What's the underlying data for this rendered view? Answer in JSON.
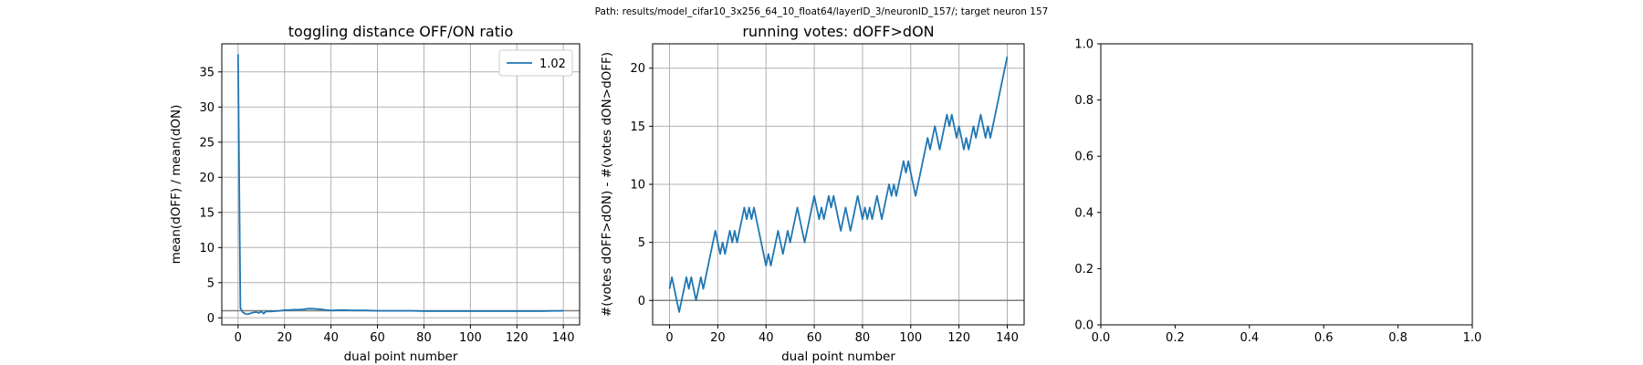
{
  "figure": {
    "suptitle": "Path: results/model_cifar10_3x256_64_10_float64/layerID_3/neuronID_157/; target neuron 157",
    "colors": {
      "line": "#1f77b4",
      "grid": "#b0b0b0",
      "hline": "#808080",
      "axes": "#000000"
    }
  },
  "chart_data": [
    {
      "type": "line",
      "title": "toggling distance OFF/ON ratio",
      "xlabel": "dual point number",
      "ylabel": "mean(dOFF) / mean(dON)",
      "xlim": [
        -7,
        147
      ],
      "ylim": [
        -1.0,
        39.0
      ],
      "xticks": [
        0,
        20,
        40,
        60,
        80,
        100,
        120,
        140
      ],
      "yticks": [
        0,
        5,
        10,
        15,
        20,
        25,
        30,
        35
      ],
      "grid": true,
      "legend": {
        "position": "top-right",
        "entries": [
          "1.02"
        ]
      },
      "hline": 1.02,
      "series": [
        {
          "name": "1.02",
          "x": [
            0,
            1,
            2,
            3,
            4,
            5,
            6,
            7,
            8,
            9,
            10,
            11,
            12,
            14,
            16,
            18,
            20,
            22,
            24,
            26,
            28,
            30,
            32,
            34,
            36,
            38,
            40,
            45,
            50,
            55,
            60,
            65,
            70,
            75,
            80,
            85,
            90,
            95,
            100,
            105,
            110,
            115,
            120,
            125,
            130,
            135,
            140
          ],
          "y": [
            37.5,
            1.4,
            0.8,
            0.6,
            0.5,
            0.6,
            0.7,
            0.8,
            0.8,
            0.7,
            0.9,
            0.6,
            0.9,
            0.9,
            0.95,
            1.0,
            1.1,
            1.1,
            1.15,
            1.15,
            1.2,
            1.3,
            1.3,
            1.25,
            1.2,
            1.1,
            1.05,
            1.1,
            1.05,
            1.05,
            1.0,
            1.0,
            1.0,
            1.0,
            0.95,
            0.95,
            0.95,
            0.95,
            0.95,
            0.95,
            0.95,
            0.95,
            0.95,
            0.95,
            0.95,
            0.98,
            1.0
          ]
        }
      ]
    },
    {
      "type": "line",
      "title": "running votes: dOFF>dON",
      "xlabel": "dual point number",
      "ylabel": "#(votes dOFF>dON) - #(votes dON>dOFF)",
      "xlim": [
        -7,
        147
      ],
      "ylim": [
        -2.1,
        22.1
      ],
      "xticks": [
        0,
        20,
        40,
        60,
        80,
        100,
        120,
        140
      ],
      "yticks": [
        0,
        5,
        10,
        15,
        20
      ],
      "grid": true,
      "hline": 0,
      "series": [
        {
          "x": [
            0,
            1,
            2,
            3,
            4,
            5,
            6,
            7,
            8,
            9,
            10,
            11,
            12,
            13,
            14,
            15,
            16,
            17,
            18,
            19,
            20,
            21,
            22,
            23,
            24,
            25,
            26,
            27,
            28,
            29,
            30,
            31,
            32,
            33,
            34,
            35,
            36,
            37,
            38,
            39,
            40,
            41,
            42,
            43,
            44,
            45,
            46,
            47,
            48,
            49,
            50,
            51,
            52,
            53,
            54,
            55,
            56,
            57,
            58,
            59,
            60,
            61,
            62,
            63,
            64,
            65,
            66,
            67,
            68,
            69,
            70,
            71,
            72,
            73,
            74,
            75,
            76,
            77,
            78,
            79,
            80,
            81,
            82,
            83,
            84,
            85,
            86,
            87,
            88,
            89,
            90,
            91,
            92,
            93,
            94,
            95,
            96,
            97,
            98,
            99,
            100,
            101,
            102,
            103,
            104,
            105,
            106,
            107,
            108,
            109,
            110,
            111,
            112,
            113,
            114,
            115,
            116,
            117,
            118,
            119,
            120,
            121,
            122,
            123,
            124,
            125,
            126,
            127,
            128,
            129,
            130,
            131,
            132,
            133,
            134,
            135,
            136,
            137,
            138,
            139,
            140
          ],
          "y": [
            1,
            2,
            1,
            0,
            -1,
            0,
            1,
            2,
            1,
            2,
            1,
            0,
            1,
            2,
            1,
            2,
            3,
            4,
            5,
            6,
            5,
            4,
            5,
            4,
            5,
            6,
            5,
            6,
            5,
            6,
            7,
            8,
            7,
            8,
            7,
            8,
            7,
            6,
            5,
            4,
            3,
            4,
            3,
            4,
            5,
            6,
            5,
            4,
            5,
            6,
            5,
            6,
            7,
            8,
            7,
            6,
            5,
            6,
            7,
            8,
            9,
            8,
            7,
            8,
            7,
            8,
            9,
            8,
            9,
            8,
            7,
            6,
            7,
            8,
            7,
            6,
            7,
            8,
            9,
            8,
            7,
            8,
            7,
            8,
            7,
            8,
            9,
            8,
            7,
            8,
            9,
            10,
            9,
            10,
            9,
            10,
            11,
            12,
            11,
            12,
            11,
            10,
            9,
            10,
            11,
            12,
            13,
            14,
            13,
            14,
            15,
            14,
            13,
            14,
            15,
            16,
            15,
            16,
            15,
            14,
            15,
            14,
            13,
            14,
            13,
            14,
            15,
            14,
            15,
            16,
            15,
            14,
            15,
            14,
            15,
            16,
            17,
            18,
            19,
            20,
            21
          ]
        }
      ]
    },
    {
      "type": "line",
      "title": "",
      "xlabel": "",
      "ylabel": "",
      "xlim": [
        0.0,
        1.0
      ],
      "ylim": [
        0.0,
        1.0
      ],
      "xticks": [
        "0.0",
        "0.2",
        "0.4",
        "0.6",
        "0.8",
        "1.0"
      ],
      "yticks": [
        "0.0",
        "0.2",
        "0.4",
        "0.6",
        "0.8",
        "1.0"
      ],
      "grid": false,
      "series": []
    }
  ]
}
